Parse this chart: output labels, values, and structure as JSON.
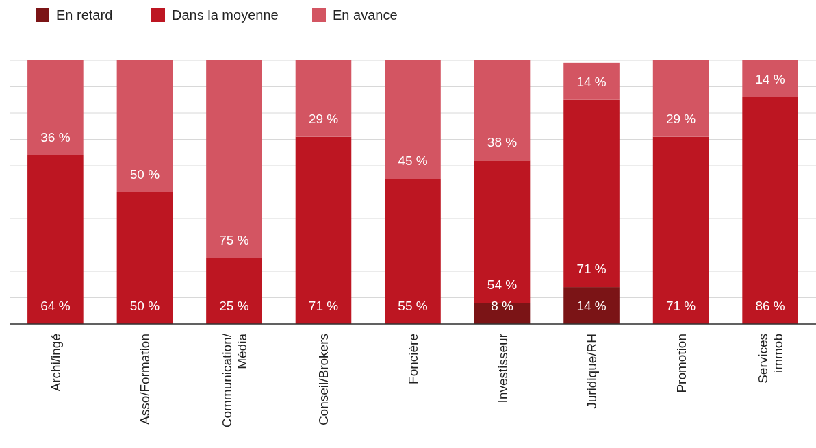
{
  "chart_data": {
    "type": "bar",
    "stacked": true,
    "categories": [
      "Archi/ingé",
      "Asso/Formation",
      "Communication/\nMédia",
      "Conseil/Brokers",
      "Foncière",
      "Investisseur",
      "Juridique/RH",
      "Promotion",
      "Services\nimmob"
    ],
    "series": [
      {
        "name": "En retard",
        "color": "#7b1416",
        "values": [
          0,
          0,
          0,
          0,
          0,
          8,
          14,
          0,
          0
        ],
        "value_labels": [
          null,
          null,
          null,
          null,
          null,
          "8 %",
          "14 %",
          null,
          null
        ]
      },
      {
        "name": "Dans la moyenne",
        "color": "#bd1622",
        "values": [
          64,
          50,
          25,
          71,
          55,
          54,
          71,
          71,
          86
        ],
        "value_labels": [
          "64 %",
          "50 %",
          "25 %",
          "71 %",
          "55 %",
          "54 %",
          "71 %",
          "71 %",
          "86 %"
        ]
      },
      {
        "name": "En avance",
        "color": "#d35562",
        "values": [
          36,
          50,
          75,
          29,
          45,
          38,
          14,
          29,
          14
        ],
        "value_labels": [
          "36 %",
          "50 %",
          "75 %",
          "29 %",
          "45 %",
          "38 %",
          "14 %",
          "29 %",
          "14 %"
        ]
      }
    ],
    "ylim": [
      0,
      100
    ],
    "yticks": [
      {
        "value": 0,
        "label": null
      },
      {
        "value": 10,
        "label": null
      },
      {
        "value": 20,
        "label": null
      },
      {
        "value": 30,
        "label": null
      },
      {
        "value": 40,
        "label": null
      },
      {
        "value": 50,
        "label": null
      },
      {
        "value": 60,
        "label": null
      },
      {
        "value": 70,
        "label": null
      },
      {
        "value": 80,
        "label": null
      },
      {
        "value": 90,
        "label": null
      },
      {
        "value": 100,
        "label": null
      }
    ],
    "grid": "y",
    "tick_labels": "x",
    "legend": "top left"
  }
}
